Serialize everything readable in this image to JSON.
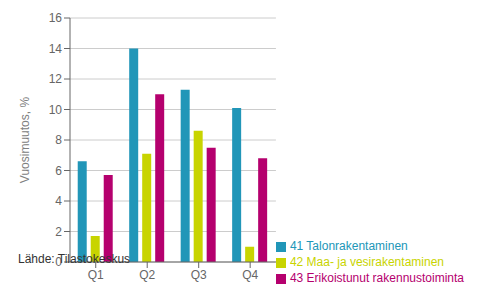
{
  "chart_data": {
    "type": "bar",
    "categories": [
      "Q1",
      "Q2",
      "Q3",
      "Q4"
    ],
    "series": [
      {
        "name": "41 Talonrakentaminen",
        "color": "#2196b8",
        "values": [
          6.6,
          14.0,
          11.3,
          10.1
        ]
      },
      {
        "name": "42 Maa- ja vesirakentaminen",
        "color": "#c8d400",
        "values": [
          1.7,
          7.1,
          8.6,
          1.0
        ]
      },
      {
        "name": "43 Erikoistunut rakennustoiminta",
        "color": "#b5006e",
        "values": [
          5.7,
          11.0,
          7.5,
          6.8
        ]
      }
    ],
    "ylabel": "Vuosimuutos, %",
    "ylim": [
      0,
      16
    ],
    "yticks": [
      0,
      2,
      4,
      6,
      8,
      10,
      12,
      14,
      16
    ],
    "grid": true,
    "legend": "lower right",
    "annotations": [
      "Lähde: Tilastokeskus"
    ]
  }
}
